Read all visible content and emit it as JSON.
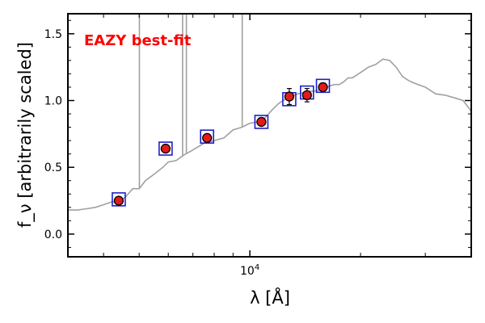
{
  "chart_data": {
    "type": "scatter",
    "title": "",
    "annotation": "EAZY best-fit",
    "xlabel": "λ [Å]",
    "ylabel": "f_ν [arbitrarily scaled]",
    "x_scale": "log",
    "xlim": [
      3200,
      40000
    ],
    "ylim": [
      -0.17,
      1.65
    ],
    "x_tick_labels": [
      "10^4"
    ],
    "y_tick_labels": [
      "0.0",
      "0.5",
      "1.0",
      "1.5"
    ],
    "grid": false,
    "series": [
      {
        "name": "",
        "kind": "model-spectrum",
        "color": "#a0a0a0",
        "x": [
          3200,
          3400,
          3600,
          3800,
          4000,
          4200,
          4400,
          4600,
          4800,
          5000,
          5200,
          5500,
          5800,
          6000,
          6300,
          6600,
          7000,
          7500,
          8000,
          8500,
          9000,
          9500,
          10000,
          10500,
          11000,
          11500,
          12000,
          12500,
          13000,
          13500,
          14000,
          14500,
          15000,
          15500,
          16000,
          16500,
          17000,
          17500,
          18000,
          18500,
          19000,
          20000,
          21000,
          22000,
          23000,
          24000,
          25000,
          26000,
          27000,
          28000,
          30000,
          32000,
          34000,
          36000,
          38000,
          40000
        ],
        "y": [
          0.18,
          0.18,
          0.19,
          0.2,
          0.22,
          0.24,
          0.24,
          0.28,
          0.34,
          0.34,
          0.4,
          0.45,
          0.5,
          0.54,
          0.55,
          0.59,
          0.63,
          0.68,
          0.7,
          0.72,
          0.78,
          0.8,
          0.83,
          0.84,
          0.87,
          0.93,
          0.98,
          1.01,
          1.03,
          1.05,
          1.06,
          1.07,
          1.07,
          1.08,
          1.09,
          1.11,
          1.12,
          1.12,
          1.14,
          1.17,
          1.17,
          1.21,
          1.25,
          1.27,
          1.31,
          1.3,
          1.25,
          1.18,
          1.15,
          1.13,
          1.1,
          1.05,
          1.04,
          1.02,
          1.0,
          0.92
        ]
      },
      {
        "name": "",
        "kind": "model-photometry",
        "color": "#1f1fcc",
        "x": [
          4400,
          5900,
          7650,
          10750,
          12800,
          14300,
          15800
        ],
        "y": [
          0.26,
          0.64,
          0.73,
          0.84,
          1.01,
          1.06,
          1.11
        ]
      },
      {
        "name": "",
        "kind": "observed-photometry",
        "color": "#e31a1c",
        "x": [
          4400,
          5900,
          7650,
          10750,
          12800,
          14300,
          15800
        ],
        "y": [
          0.25,
          0.64,
          0.72,
          0.84,
          1.03,
          1.04,
          1.1
        ],
        "yerr": [
          0.02,
          0.02,
          0.02,
          0.03,
          0.06,
          0.05,
          0.03
        ]
      }
    ],
    "emission_lines_x": [
      5007,
      6563,
      6720,
      9532
    ],
    "annotation_color": "#ff0000"
  }
}
